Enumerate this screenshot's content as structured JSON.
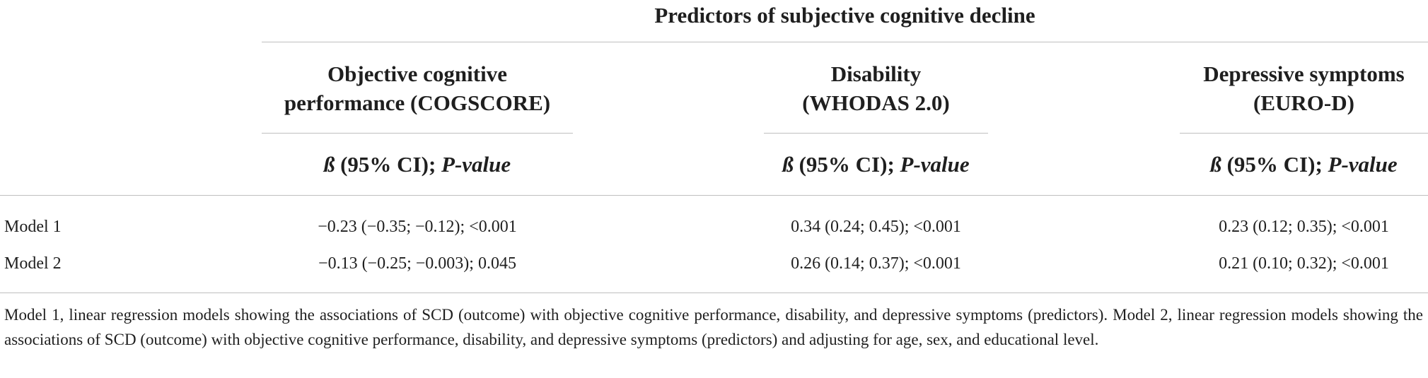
{
  "table": {
    "group_header": "Predictors of subjective cognitive decline",
    "columns": [
      {
        "title_line1": "Objective cognitive",
        "title_line2": "performance (COGSCORE)",
        "stat_beta": "ß",
        "stat_ci": " (95% CI); ",
        "stat_p": "P-value"
      },
      {
        "title_line1": "Disability",
        "title_line2": "(WHODAS 2.0)",
        "stat_beta": "ß",
        "stat_ci": " (95% CI); ",
        "stat_p": "P-value"
      },
      {
        "title_line1": "Depressive symptoms",
        "title_line2": "(EURO-D)",
        "stat_beta": "ß",
        "stat_ci": " (95% CI); ",
        "stat_p": "P-value"
      }
    ],
    "rows": [
      {
        "label": "Model 1",
        "values": [
          "−0.23 (−0.35; −0.12); <0.001",
          "0.34 (0.24; 0.45); <0.001",
          "0.23 (0.12; 0.35); <0.001"
        ]
      },
      {
        "label": "Model 2",
        "values": [
          "−0.13 (−0.25; −0.003); 0.045",
          "0.26 (0.14; 0.37); <0.001",
          "0.21 (0.10; 0.32); <0.001"
        ]
      }
    ],
    "footnote": "Model 1, linear regression models showing the associations of SCD (outcome) with objective cognitive performance, disability, and depressive symptoms (predictors). Model 2, linear regression models showing the associations of SCD (outcome) with objective cognitive performance, disability, and depressive symptoms (predictors) and adjusting for age, sex, and educational level."
  }
}
